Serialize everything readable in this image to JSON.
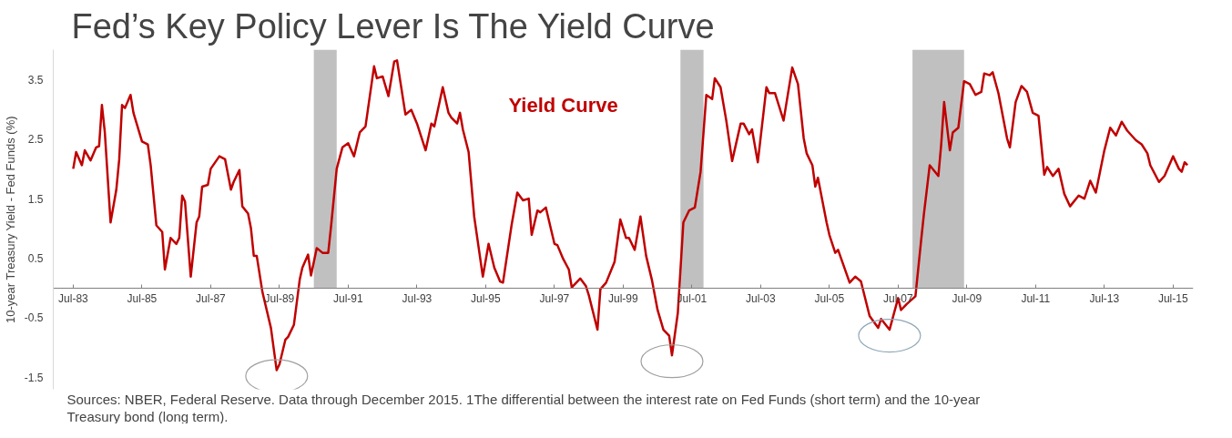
{
  "chart_data": {
    "type": "line",
    "title": "Fed’s Key Policy Lever Is The Yield Curve",
    "ylabel": "10-year Treasury Yield - Fed Funds (%)",
    "x": [
      "1983-07",
      "1983-08",
      "1983-10",
      "1983-11",
      "1984-01",
      "1984-03",
      "1984-04",
      "1984-05",
      "1984-06",
      "1984-08",
      "1984-10",
      "1984-11",
      "1984-12",
      "1985-01",
      "1985-03",
      "1985-04",
      "1985-07",
      "1985-09",
      "1985-10",
      "1985-12",
      "1986-02",
      "1986-03",
      "1986-05",
      "1986-07",
      "1986-08",
      "1986-09",
      "1986-10",
      "1986-12",
      "1987-02",
      "1987-03",
      "1987-04",
      "1987-06",
      "1987-07",
      "1987-10",
      "1987-12",
      "1988-02",
      "1988-03",
      "1988-05",
      "1988-06",
      "1988-08",
      "1988-09",
      "1988-10",
      "1988-11",
      "1989-01",
      "1989-04",
      "1989-06",
      "1989-07",
      "1989-09",
      "1989-10",
      "1989-12",
      "1990-02",
      "1990-03",
      "1990-05",
      "1990-06",
      "1990-08",
      "1990-10",
      "1990-12",
      "1991-01",
      "1991-03",
      "1991-05",
      "1991-07",
      "1991-09",
      "1991-11",
      "1992-01",
      "1992-04",
      "1992-05",
      "1992-07",
      "1992-09",
      "1992-11",
      "1992-12",
      "1993-03",
      "1993-05",
      "1993-07",
      "1993-10",
      "1993-12",
      "1994-01",
      "1994-04",
      "1994-06",
      "1994-07",
      "1994-09",
      "1994-10",
      "1994-11",
      "1995-01",
      "1995-03",
      "1995-06",
      "1995-08",
      "1995-10",
      "1995-12",
      "1996-01",
      "1996-04",
      "1996-06",
      "1996-08",
      "1996-10",
      "1996-11",
      "1997-01",
      "1997-02",
      "1997-04",
      "1997-07",
      "1997-08",
      "1997-10",
      "1997-12",
      "1998-01",
      "1998-04",
      "1998-06",
      "1998-07",
      "1998-10",
      "1998-11",
      "1999-01",
      "1999-04",
      "1999-06",
      "1999-08",
      "1999-09",
      "1999-11",
      "2000-01",
      "2000-03",
      "2000-05",
      "2000-07",
      "2000-09",
      "2000-11",
      "2000-12",
      "2001-02",
      "2001-04",
      "2001-06",
      "2001-08",
      "2001-10",
      "2001-12",
      "2002-02",
      "2002-03",
      "2002-05",
      "2002-07",
      "2002-09",
      "2002-12",
      "2003-01",
      "2003-03",
      "2003-04",
      "2003-06",
      "2003-09",
      "2003-10",
      "2003-12",
      "2004-03",
      "2004-06",
      "2004-08",
      "2004-10",
      "2004-11",
      "2005-01",
      "2005-02",
      "2005-03",
      "2005-06",
      "2005-07",
      "2005-09",
      "2005-10",
      "2006-02",
      "2006-04",
      "2006-06",
      "2006-09",
      "2006-12",
      "2007-01",
      "2007-04",
      "2007-07",
      "2007-08",
      "2007-10",
      "2008-01",
      "2008-03",
      "2008-04",
      "2008-06",
      "2008-09",
      "2008-10",
      "2008-11",
      "2009-01",
      "2009-02",
      "2009-04",
      "2009-06",
      "2009-08",
      "2009-10",
      "2009-12",
      "2010-01",
      "2010-03",
      "2010-04",
      "2010-06",
      "2010-09",
      "2010-10",
      "2010-12",
      "2011-02",
      "2011-04",
      "2011-06",
      "2011-08",
      "2011-10",
      "2011-11",
      "2012-01",
      "2012-03",
      "2012-05",
      "2012-07",
      "2012-10",
      "2012-12",
      "2013-02",
      "2013-04",
      "2013-07",
      "2013-09",
      "2013-11",
      "2014-01",
      "2014-03",
      "2014-06",
      "2014-08",
      "2014-10",
      "2014-11",
      "2015-02",
      "2015-04",
      "2015-07",
      "2015-09",
      "2015-10",
      "2015-11",
      "2015-12"
    ],
    "series": [
      {
        "name": "Yield Curve",
        "color": "#c00000",
        "values": [
          2.0,
          2.28,
          2.06,
          2.31,
          2.14,
          2.36,
          2.38,
          3.07,
          2.61,
          1.1,
          1.65,
          2.16,
          3.07,
          3.02,
          3.24,
          2.94,
          2.46,
          2.41,
          2.06,
          1.05,
          0.94,
          0.31,
          0.84,
          0.74,
          0.84,
          1.55,
          1.45,
          0.19,
          1.1,
          1.2,
          1.7,
          1.73,
          2.0,
          2.21,
          2.16,
          1.65,
          1.78,
          1.98,
          1.37,
          1.25,
          1.0,
          0.54,
          0.54,
          -0.07,
          -0.67,
          -1.38,
          -1.28,
          -0.87,
          -0.82,
          -0.62,
          0.14,
          0.34,
          0.56,
          0.21,
          0.67,
          0.59,
          0.59,
          1.05,
          2.0,
          2.36,
          2.43,
          2.21,
          2.61,
          2.71,
          3.72,
          3.52,
          3.55,
          3.22,
          3.8,
          3.82,
          2.91,
          2.99,
          2.76,
          2.31,
          2.76,
          2.71,
          3.37,
          2.94,
          2.86,
          2.76,
          2.94,
          2.66,
          2.28,
          1.2,
          0.19,
          0.74,
          0.34,
          0.11,
          0.09,
          1.05,
          1.6,
          1.47,
          1.5,
          0.89,
          1.3,
          1.27,
          1.35,
          0.74,
          0.72,
          0.49,
          0.31,
          0.01,
          0.16,
          0.03,
          -0.12,
          -0.7,
          -0.02,
          0.09,
          0.44,
          1.15,
          0.84,
          0.84,
          0.64,
          1.2,
          0.54,
          0.14,
          -0.37,
          -0.7,
          -0.8,
          -1.13,
          -0.42,
          1.1,
          1.3,
          1.35,
          1.95,
          3.24,
          3.17,
          3.52,
          3.37,
          2.81,
          2.13,
          2.76,
          2.76,
          2.58,
          2.66,
          2.11,
          3.37,
          3.27,
          3.27,
          2.81,
          3.7,
          3.42,
          2.51,
          2.26,
          2.06,
          1.7,
          1.85,
          1.1,
          0.89,
          0.59,
          0.64,
          0.09,
          0.19,
          0.11,
          -0.47,
          -0.67,
          -0.52,
          -0.7,
          -0.17,
          -0.37,
          -0.27,
          -0.14,
          0.79,
          1.25,
          2.06,
          1.88,
          2.41,
          3.12,
          2.31,
          2.61,
          2.69,
          3.47,
          3.42,
          3.24,
          3.29,
          3.6,
          3.57,
          3.62,
          3.27,
          2.51,
          2.36,
          3.12,
          3.39,
          3.29,
          2.94,
          2.89,
          1.9,
          2.03,
          1.88,
          2.0,
          1.58,
          1.37,
          1.55,
          1.5,
          1.8,
          1.6,
          2.31,
          2.69,
          2.56,
          2.79,
          2.64,
          2.48,
          2.41,
          2.26,
          2.06,
          1.78,
          1.88,
          2.21,
          2.0,
          1.95,
          2.11,
          2.06
        ]
      }
    ],
    "xlim": [
      "1982-12",
      "2016-02"
    ],
    "ylim": [
      -1.7,
      4.0
    ],
    "xticks": [
      {
        "value": "1983-07",
        "label": "Jul-83"
      },
      {
        "value": "1985-07",
        "label": "Jul-85"
      },
      {
        "value": "1987-07",
        "label": "Jul-87"
      },
      {
        "value": "1989-07",
        "label": "Jul-89"
      },
      {
        "value": "1991-07",
        "label": "Jul-91"
      },
      {
        "value": "1993-07",
        "label": "Jul-93"
      },
      {
        "value": "1995-07",
        "label": "Jul-95"
      },
      {
        "value": "1997-07",
        "label": "Jul-97"
      },
      {
        "value": "1999-07",
        "label": "Jul-99"
      },
      {
        "value": "2001-07",
        "label": "Jul-01"
      },
      {
        "value": "2003-07",
        "label": "Jul-03"
      },
      {
        "value": "2005-07",
        "label": "Jul-05"
      },
      {
        "value": "2007-07",
        "label": "Jul-07"
      },
      {
        "value": "2009-07",
        "label": "Jul-09"
      },
      {
        "value": "2011-07",
        "label": "Jul-11"
      },
      {
        "value": "2013-07",
        "label": "Jul-13"
      },
      {
        "value": "2015-07",
        "label": "Jul-15"
      }
    ],
    "yticks": [
      3.5,
      2.5,
      1.5,
      0.5,
      -0.5,
      -1.5
    ],
    "bands": [
      {
        "axis": "x",
        "from": "1990-07",
        "to": "1991-03",
        "color": "#c0c0c0"
      },
      {
        "axis": "x",
        "from": "2001-03",
        "to": "2001-11",
        "color": "#c0c0c0"
      },
      {
        "axis": "x",
        "from": "2007-12",
        "to": "2009-06",
        "color": "#c0c0c0"
      }
    ],
    "annotations": [
      "Sources: NBER, Federal Reserve.  Data through December 2015. 1The differential between the interest rate on Fed Funds (short term) and the 10-year Treasury bond (long term)."
    ],
    "grid": false,
    "legend": false,
    "marker": "none",
    "line_style": "solid"
  }
}
